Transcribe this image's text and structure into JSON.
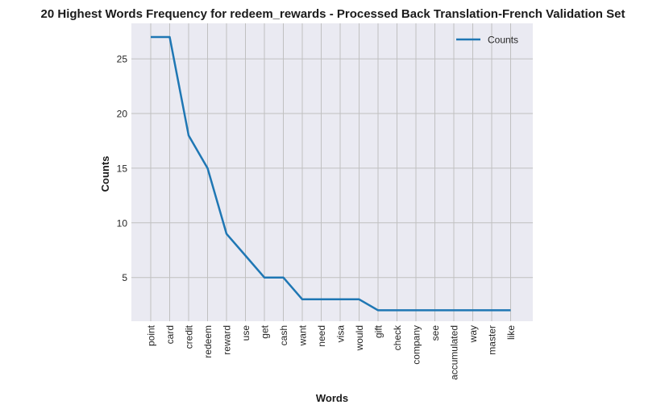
{
  "chart_data": {
    "type": "line",
    "title": "20 Highest Words Frequency for redeem_rewards - Processed Back Translation-French Validation Set",
    "xlabel": "Words",
    "ylabel": "Counts",
    "categories": [
      "point",
      "card",
      "credit",
      "redeem",
      "reward",
      "use",
      "get",
      "cash",
      "want",
      "need",
      "visa",
      "would",
      "gift",
      "check",
      "company",
      "see",
      "accumulated",
      "way",
      "master",
      "like"
    ],
    "series": [
      {
        "name": "Counts",
        "values": [
          27,
          27,
          18,
          15,
          9,
          7,
          5,
          5,
          3,
          3,
          3,
          3,
          2,
          2,
          2,
          2,
          2,
          2,
          2,
          2
        ],
        "color": "#1f77b4"
      }
    ],
    "ylim": [
      1,
      28.25
    ],
    "yticks": [
      5,
      10,
      15,
      20,
      25
    ],
    "grid": true,
    "legend_position": "top-right",
    "colors": {
      "plot_background": "#eaeaf2",
      "grid": "#c0c0c0",
      "line": "#1f77b4"
    }
  }
}
